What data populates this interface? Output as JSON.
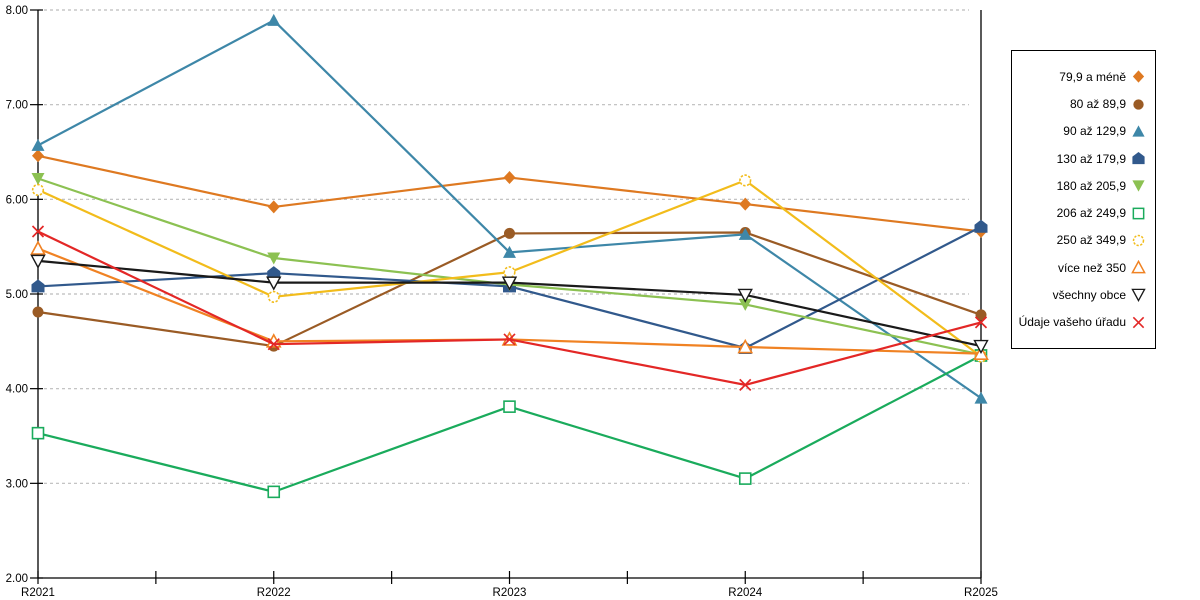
{
  "chart_data": {
    "type": "line",
    "categories": [
      "R2021",
      "R2022",
      "R2023",
      "R2024",
      "R2025"
    ],
    "ylim": [
      2,
      8
    ],
    "y_tick_step": 1,
    "y_tick_labels": [
      "2.00",
      "3.00",
      "4.00",
      "5.00",
      "6.00",
      "7.00",
      "8.00"
    ],
    "grid": "horizontal dashed gray",
    "legend_position": "right",
    "series": [
      {
        "name": "79,9 a méně",
        "marker": "diamond",
        "color": "#DE7921",
        "values": [
          6.46,
          5.92,
          6.23,
          5.95,
          5.66
        ]
      },
      {
        "name": "80 až 89,9",
        "marker": "circle",
        "color": "#9A5B25",
        "values": [
          4.81,
          4.45,
          5.64,
          5.65,
          4.78
        ]
      },
      {
        "name": "90 až 129,9",
        "marker": "triangle-up",
        "color": "#3E87A8",
        "values": [
          6.57,
          7.89,
          5.44,
          5.63,
          3.9
        ]
      },
      {
        "name": "130 až 179,9",
        "marker": "pentagon",
        "color": "#31598C",
        "values": [
          5.08,
          5.22,
          5.08,
          4.43,
          5.71
        ]
      },
      {
        "name": "180 až 205,9",
        "marker": "triangle-down",
        "color": "#8CC152",
        "values": [
          6.22,
          5.38,
          5.1,
          4.89,
          4.36
        ]
      },
      {
        "name": "206 až 249,9",
        "marker": "square-open",
        "color": "#1AAB5C",
        "values": [
          3.53,
          2.91,
          3.81,
          3.05,
          4.35
        ]
      },
      {
        "name": "250 až 349,9",
        "marker": "circle-open",
        "color": "#F2BC1B",
        "values": [
          6.1,
          4.97,
          5.23,
          6.2,
          4.34
        ]
      },
      {
        "name": "více než 350",
        "marker": "triangle-open",
        "color": "#F08223",
        "values": [
          5.48,
          4.5,
          4.52,
          4.44,
          4.37
        ]
      },
      {
        "name": "všechny obce",
        "marker": "triangle-down-open",
        "color": "#1A1A1A",
        "values": [
          5.35,
          5.12,
          5.12,
          4.99,
          4.45
        ]
      },
      {
        "name": "Údaje vašeho úřadu",
        "marker": "x",
        "color": "#E32726",
        "values": [
          5.66,
          4.47,
          4.52,
          4.04,
          4.7
        ]
      }
    ]
  }
}
